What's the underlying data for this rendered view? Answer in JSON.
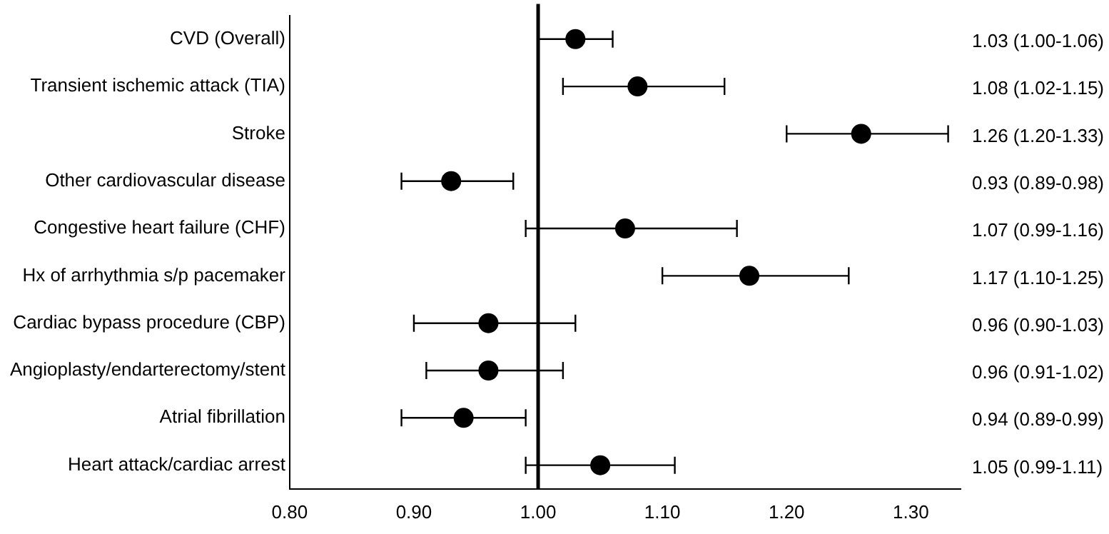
{
  "chart_data": {
    "type": "scatter",
    "orientation": "horizontal",
    "categories": [
      "CVD (Overall)",
      "Transient ischemic attack (TIA)",
      "Stroke",
      "Other cardiovascular disease",
      "Congestive heart failure (CHF)",
      "Hx of arrhythmia s/p pacemaker",
      "Cardiac bypass procedure (CBP)",
      "Angioplasty/endarterectomy/stent",
      "Atrial fibrillation",
      "Heart attack/cardiac arrest"
    ],
    "values": [
      1.03,
      1.08,
      1.26,
      0.93,
      1.07,
      1.17,
      0.96,
      0.96,
      0.94,
      1.05
    ],
    "errors": [
      [
        1.0,
        1.06
      ],
      [
        1.02,
        1.15
      ],
      [
        1.2,
        1.33
      ],
      [
        0.89,
        0.98
      ],
      [
        0.99,
        1.16
      ],
      [
        1.1,
        1.25
      ],
      [
        0.9,
        1.03
      ],
      [
        0.91,
        1.02
      ],
      [
        0.89,
        0.99
      ],
      [
        0.99,
        1.11
      ]
    ],
    "value_labels": [
      "1.03 (1.00-1.06)",
      "1.08 (1.02-1.15)",
      "1.26 (1.20-1.33)",
      "0.93 (0.89-0.98)",
      "1.07 (0.99-1.16)",
      "1.17 (1.10-1.25)",
      "0.96 (0.90-1.03)",
      "0.96 (0.91-1.02)",
      "0.94 (0.89-0.99)",
      "1.05 (0.99-1.11)"
    ],
    "color": "#000000",
    "marker": "circle",
    "grid": false,
    "legend": false,
    "xlim": [
      0.8,
      1.34
    ],
    "xticks": [
      {
        "value": 0.8,
        "label": "0.80"
      },
      {
        "value": 0.9,
        "label": "0.90"
      },
      {
        "value": 1.0,
        "label": "1.00"
      },
      {
        "value": 1.1,
        "label": "1.10"
      },
      {
        "value": 1.2,
        "label": "1.20"
      },
      {
        "value": 1.3,
        "label": "1.30"
      }
    ],
    "ref_lines": [
      {
        "axis": "x",
        "value": 1.0,
        "color": "#000000"
      }
    ]
  }
}
